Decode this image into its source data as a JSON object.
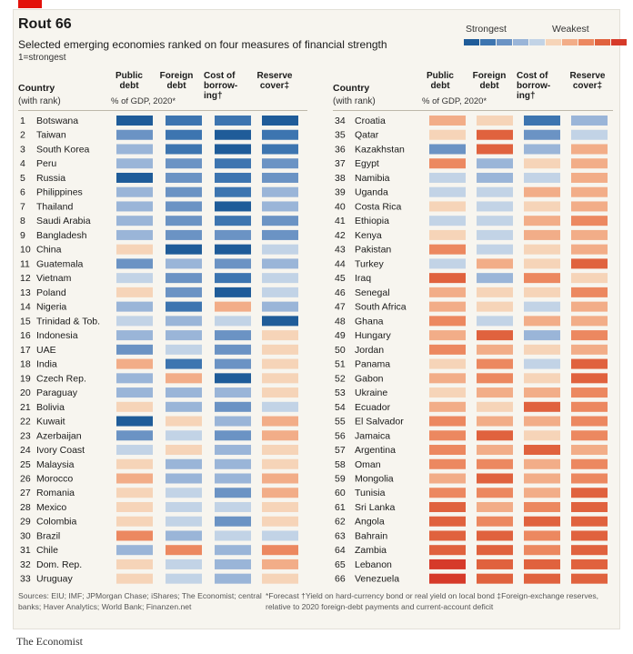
{
  "header": {
    "title": "Rout 66",
    "subtitle": "Selected emerging economies ranked on four measures of financial strength",
    "rank_note": "1=strongest",
    "legend_strong": "Strongest",
    "legend_weak": "Weakest"
  },
  "columns": {
    "country": "Country",
    "country_sub": "(with rank)",
    "public_debt": [
      "Public",
      "debt"
    ],
    "foreign_debt": [
      "Foreign",
      "debt"
    ],
    "cost_of_borrowing": [
      "Cost of",
      "borrow-",
      "ing†"
    ],
    "reserve_cover": [
      "Reserve",
      "cover‡"
    ],
    "debt_units": "% of GDP, 2020*"
  },
  "colors": {
    "scale": [
      "#1f5c99",
      "#3d75b0",
      "#6b93c4",
      "#9ab5d8",
      "#c2d3e6",
      "#f6d4b8",
      "#f2ad88",
      "#ec8860",
      "#e0623e",
      "#d63a2a"
    ],
    "frame": "#f7f5ef",
    "accent": "#e3120b"
  },
  "footer": {
    "sources": "Sources: EIU; IMF; JPMorgan Chase; iShares; The Economist; central banks; Haver Analytics; World Bank; Finanzen.net",
    "notes": "*Forecast  †Yield on hard-currency bond or real yield on local bond  ‡Foreign-exchange reserves, relative to 2020 foreign-debt payments and current-account deficit",
    "brand": "The Economist"
  },
  "chart_data": {
    "type": "heatmap",
    "title": "Rout 66",
    "subtitle": "Selected emerging economies ranked on four measures of financial strength",
    "scale_note": "values are colour-scale levels 1 (strongest) to 10 (weakest), estimated from shading",
    "measures": [
      "Public debt",
      "Foreign debt",
      "Cost of borrowing",
      "Reserve cover"
    ],
    "rows": [
      {
        "rank": 1,
        "country": "Botswana",
        "levels": [
          1,
          2,
          2,
          1
        ]
      },
      {
        "rank": 2,
        "country": "Taiwan",
        "levels": [
          3,
          2,
          1,
          2
        ]
      },
      {
        "rank": 3,
        "country": "South Korea",
        "levels": [
          4,
          2,
          1,
          2
        ]
      },
      {
        "rank": 4,
        "country": "Peru",
        "levels": [
          4,
          3,
          2,
          3
        ]
      },
      {
        "rank": 5,
        "country": "Russia",
        "levels": [
          1,
          3,
          2,
          3
        ]
      },
      {
        "rank": 6,
        "country": "Philippines",
        "levels": [
          4,
          3,
          2,
          4
        ]
      },
      {
        "rank": 7,
        "country": "Thailand",
        "levels": [
          4,
          3,
          1,
          4
        ]
      },
      {
        "rank": 8,
        "country": "Saudi Arabia",
        "levels": [
          4,
          3,
          2,
          3
        ]
      },
      {
        "rank": 9,
        "country": "Bangladesh",
        "levels": [
          4,
          3,
          3,
          3
        ]
      },
      {
        "rank": 10,
        "country": "China",
        "levels": [
          6,
          1,
          1,
          5
        ]
      },
      {
        "rank": 11,
        "country": "Guatemala",
        "levels": [
          3,
          4,
          3,
          4
        ]
      },
      {
        "rank": 12,
        "country": "Vietnam",
        "levels": [
          5,
          3,
          2,
          5
        ]
      },
      {
        "rank": 13,
        "country": "Poland",
        "levels": [
          6,
          3,
          1,
          5
        ]
      },
      {
        "rank": 14,
        "country": "Nigeria",
        "levels": [
          4,
          2,
          7,
          4
        ]
      },
      {
        "rank": 15,
        "country": "Trinidad & Tob.",
        "levels": [
          5,
          4,
          5,
          1
        ]
      },
      {
        "rank": 16,
        "country": "Indonesia",
        "levels": [
          4,
          4,
          3,
          6
        ]
      },
      {
        "rank": 17,
        "country": "UAE",
        "levels": [
          3,
          5,
          3,
          6
        ]
      },
      {
        "rank": 18,
        "country": "India",
        "levels": [
          7,
          2,
          3,
          6
        ]
      },
      {
        "rank": 19,
        "country": "Czech Rep.",
        "levels": [
          4,
          7,
          1,
          6
        ]
      },
      {
        "rank": 20,
        "country": "Paraguay",
        "levels": [
          4,
          4,
          4,
          6
        ]
      },
      {
        "rank": 21,
        "country": "Bolivia",
        "levels": [
          6,
          4,
          3,
          5
        ]
      },
      {
        "rank": 22,
        "country": "Kuwait",
        "levels": [
          1,
          6,
          4,
          7
        ]
      },
      {
        "rank": 23,
        "country": "Azerbaijan",
        "levels": [
          3,
          5,
          3,
          7
        ]
      },
      {
        "rank": 24,
        "country": "Ivory Coast",
        "levels": [
          5,
          6,
          4,
          6
        ]
      },
      {
        "rank": 25,
        "country": "Malaysia",
        "levels": [
          6,
          4,
          4,
          6
        ]
      },
      {
        "rank": 26,
        "country": "Morocco",
        "levels": [
          7,
          4,
          4,
          7
        ]
      },
      {
        "rank": 27,
        "country": "Romania",
        "levels": [
          6,
          5,
          3,
          7
        ]
      },
      {
        "rank": 28,
        "country": "Mexico",
        "levels": [
          6,
          5,
          5,
          6
        ]
      },
      {
        "rank": 29,
        "country": "Colombia",
        "levels": [
          6,
          5,
          3,
          6
        ]
      },
      {
        "rank": 30,
        "country": "Brazil",
        "levels": [
          8,
          4,
          5,
          5
        ]
      },
      {
        "rank": 31,
        "country": "Chile",
        "levels": [
          4,
          8,
          4,
          8
        ]
      },
      {
        "rank": 32,
        "country": "Dom. Rep.",
        "levels": [
          6,
          5,
          4,
          7
        ]
      },
      {
        "rank": 33,
        "country": "Uruguay",
        "levels": [
          6,
          5,
          4,
          6
        ]
      },
      {
        "rank": 34,
        "country": "Croatia",
        "levels": [
          7,
          6,
          2,
          4
        ]
      },
      {
        "rank": 35,
        "country": "Qatar",
        "levels": [
          6,
          9,
          3,
          5
        ]
      },
      {
        "rank": 36,
        "country": "Kazakhstan",
        "levels": [
          3,
          9,
          4,
          7
        ]
      },
      {
        "rank": 37,
        "country": "Egypt",
        "levels": [
          8,
          4,
          6,
          7
        ]
      },
      {
        "rank": 38,
        "country": "Namibia",
        "levels": [
          5,
          4,
          5,
          7
        ]
      },
      {
        "rank": 39,
        "country": "Uganda",
        "levels": [
          5,
          5,
          7,
          7
        ]
      },
      {
        "rank": 40,
        "country": "Costa Rica",
        "levels": [
          6,
          5,
          6,
          7
        ]
      },
      {
        "rank": 41,
        "country": "Ethiopia",
        "levels": [
          5,
          5,
          7,
          8
        ]
      },
      {
        "rank": 42,
        "country": "Kenya",
        "levels": [
          6,
          5,
          7,
          7
        ]
      },
      {
        "rank": 43,
        "country": "Pakistan",
        "levels": [
          8,
          5,
          6,
          7
        ]
      },
      {
        "rank": 44,
        "country": "Turkey",
        "levels": [
          5,
          7,
          6,
          9
        ]
      },
      {
        "rank": 45,
        "country": "Iraq",
        "levels": [
          9,
          4,
          8,
          6
        ]
      },
      {
        "rank": 46,
        "country": "Senegal",
        "levels": [
          7,
          6,
          6,
          8
        ]
      },
      {
        "rank": 47,
        "country": "South Africa",
        "levels": [
          7,
          6,
          5,
          7
        ]
      },
      {
        "rank": 48,
        "country": "Ghana",
        "levels": [
          8,
          5,
          7,
          7
        ]
      },
      {
        "rank": 49,
        "country": "Hungary",
        "levels": [
          7,
          9,
          4,
          8
        ]
      },
      {
        "rank": 50,
        "country": "Jordan",
        "levels": [
          8,
          7,
          6,
          7
        ]
      },
      {
        "rank": 51,
        "country": "Panama",
        "levels": [
          6,
          8,
          5,
          9
        ]
      },
      {
        "rank": 52,
        "country": "Gabon",
        "levels": [
          7,
          8,
          6,
          9
        ]
      },
      {
        "rank": 53,
        "country": "Ukraine",
        "levels": [
          6,
          7,
          7,
          8
        ]
      },
      {
        "rank": 54,
        "country": "Ecuador",
        "levels": [
          7,
          6,
          9,
          8
        ]
      },
      {
        "rank": 55,
        "country": "El Salvador",
        "levels": [
          8,
          7,
          7,
          8
        ]
      },
      {
        "rank": 56,
        "country": "Jamaica",
        "levels": [
          8,
          9,
          6,
          8
        ]
      },
      {
        "rank": 57,
        "country": "Argentina",
        "levels": [
          8,
          7,
          9,
          7
        ]
      },
      {
        "rank": 58,
        "country": "Oman",
        "levels": [
          8,
          8,
          7,
          8
        ]
      },
      {
        "rank": 59,
        "country": "Mongolia",
        "levels": [
          7,
          9,
          7,
          8
        ]
      },
      {
        "rank": 60,
        "country": "Tunisia",
        "levels": [
          8,
          8,
          7,
          9
        ]
      },
      {
        "rank": 61,
        "country": "Sri Lanka",
        "levels": [
          9,
          7,
          8,
          9
        ]
      },
      {
        "rank": 62,
        "country": "Angola",
        "levels": [
          9,
          8,
          9,
          9
        ]
      },
      {
        "rank": 63,
        "country": "Bahrain",
        "levels": [
          9,
          9,
          8,
          9
        ]
      },
      {
        "rank": 64,
        "country": "Zambia",
        "levels": [
          9,
          9,
          8,
          9
        ]
      },
      {
        "rank": 65,
        "country": "Lebanon",
        "levels": [
          10,
          9,
          9,
          9
        ]
      },
      {
        "rank": 66,
        "country": "Venezuela",
        "levels": [
          10,
          9,
          9,
          9
        ]
      }
    ]
  }
}
